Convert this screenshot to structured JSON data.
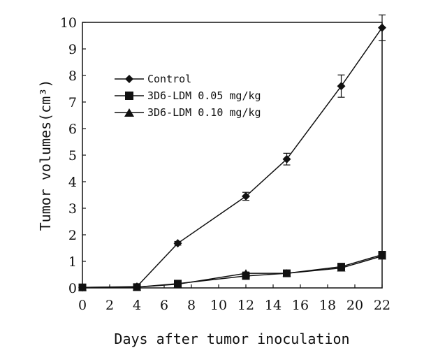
{
  "chart_data": {
    "type": "line",
    "xlabel": "Days after tumor inoculation",
    "ylabel": "Tumor volumes(cm³)",
    "xlim": [
      0,
      22
    ],
    "ylim": [
      0,
      10
    ],
    "xticks": [
      0,
      2,
      4,
      6,
      8,
      10,
      12,
      14,
      16,
      18,
      20,
      22
    ],
    "yticks": [
      0,
      1,
      2,
      3,
      4,
      5,
      6,
      7,
      8,
      9,
      10
    ],
    "grid": false,
    "legend_position": "upper-left",
    "series": [
      {
        "name": "Control",
        "marker": "diamond",
        "x": [
          0,
          4,
          7,
          12,
          15,
          19,
          22
        ],
        "y": [
          0.02,
          0.05,
          1.68,
          3.45,
          4.85,
          7.6,
          9.8
        ],
        "err": [
          0,
          0,
          0.07,
          0.15,
          0.22,
          0.42,
          0.48
        ]
      },
      {
        "name": "3D6-LDM 0.05 mg/kg",
        "marker": "square",
        "x": [
          0,
          4,
          7,
          12,
          15,
          19,
          22
        ],
        "y": [
          0.02,
          0.03,
          0.16,
          0.45,
          0.55,
          0.8,
          1.25
        ],
        "err": [
          0,
          0,
          0.04,
          0.06,
          0.06,
          0.06,
          0.1
        ]
      },
      {
        "name": "3D6-LDM 0.10 mg/kg",
        "marker": "triangle",
        "x": [
          0,
          4,
          7,
          12,
          15,
          19,
          22
        ],
        "y": [
          0.02,
          0.03,
          0.14,
          0.55,
          0.55,
          0.75,
          1.2
        ],
        "err": [
          0,
          0,
          0.04,
          0.05,
          0.05,
          0.05,
          0.08
        ]
      }
    ]
  }
}
